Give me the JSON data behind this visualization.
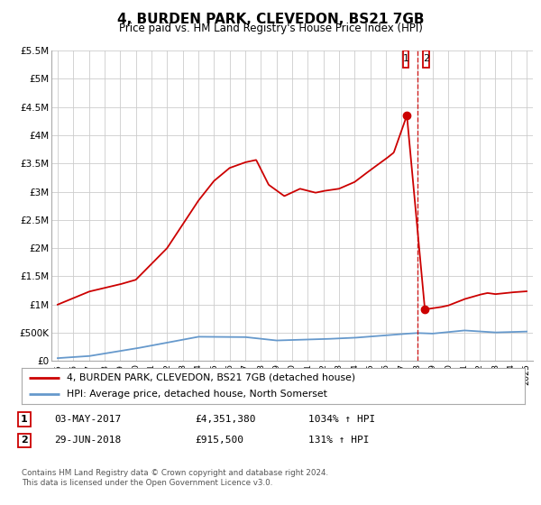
{
  "title": "4, BURDEN PARK, CLEVEDON, BS21 7GB",
  "subtitle": "Price paid vs. HM Land Registry's House Price Index (HPI)",
  "ylim": [
    0,
    5500000
  ],
  "xlim_min": 1994.6,
  "xlim_max": 2025.4,
  "yticks": [
    0,
    500000,
    1000000,
    1500000,
    2000000,
    2500000,
    3000000,
    3500000,
    4000000,
    4500000,
    5000000,
    5500000
  ],
  "ytick_labels": [
    "£0",
    "£500K",
    "£1M",
    "£1.5M",
    "£2M",
    "£2.5M",
    "£3M",
    "£3.5M",
    "£4M",
    "£4.5M",
    "£5M",
    "£5.5M"
  ],
  "xticks": [
    1995,
    1996,
    1997,
    1998,
    1999,
    2000,
    2001,
    2002,
    2003,
    2004,
    2005,
    2006,
    2007,
    2008,
    2009,
    2010,
    2011,
    2012,
    2013,
    2014,
    2015,
    2016,
    2017,
    2018,
    2019,
    2020,
    2021,
    2022,
    2023,
    2024,
    2025
  ],
  "hpi_color": "#6699cc",
  "property_color": "#cc0000",
  "point1_x": 2017.34,
  "point1_y": 4351380,
  "point2_x": 2018.49,
  "point2_y": 915500,
  "vline_x": 2018.0,
  "legend_property": "4, BURDEN PARK, CLEVEDON, BS21 7GB (detached house)",
  "legend_hpi": "HPI: Average price, detached house, North Somerset",
  "table_row1": [
    "1",
    "03-MAY-2017",
    "£4,351,380",
    "1034% ↑ HPI"
  ],
  "table_row2": [
    "2",
    "29-JUN-2018",
    "£915,500",
    "131% ↑ HPI"
  ],
  "footer": "Contains HM Land Registry data © Crown copyright and database right 2024.\nThis data is licensed under the Open Government Licence v3.0.",
  "background_color": "#ffffff",
  "grid_color": "#cccccc"
}
